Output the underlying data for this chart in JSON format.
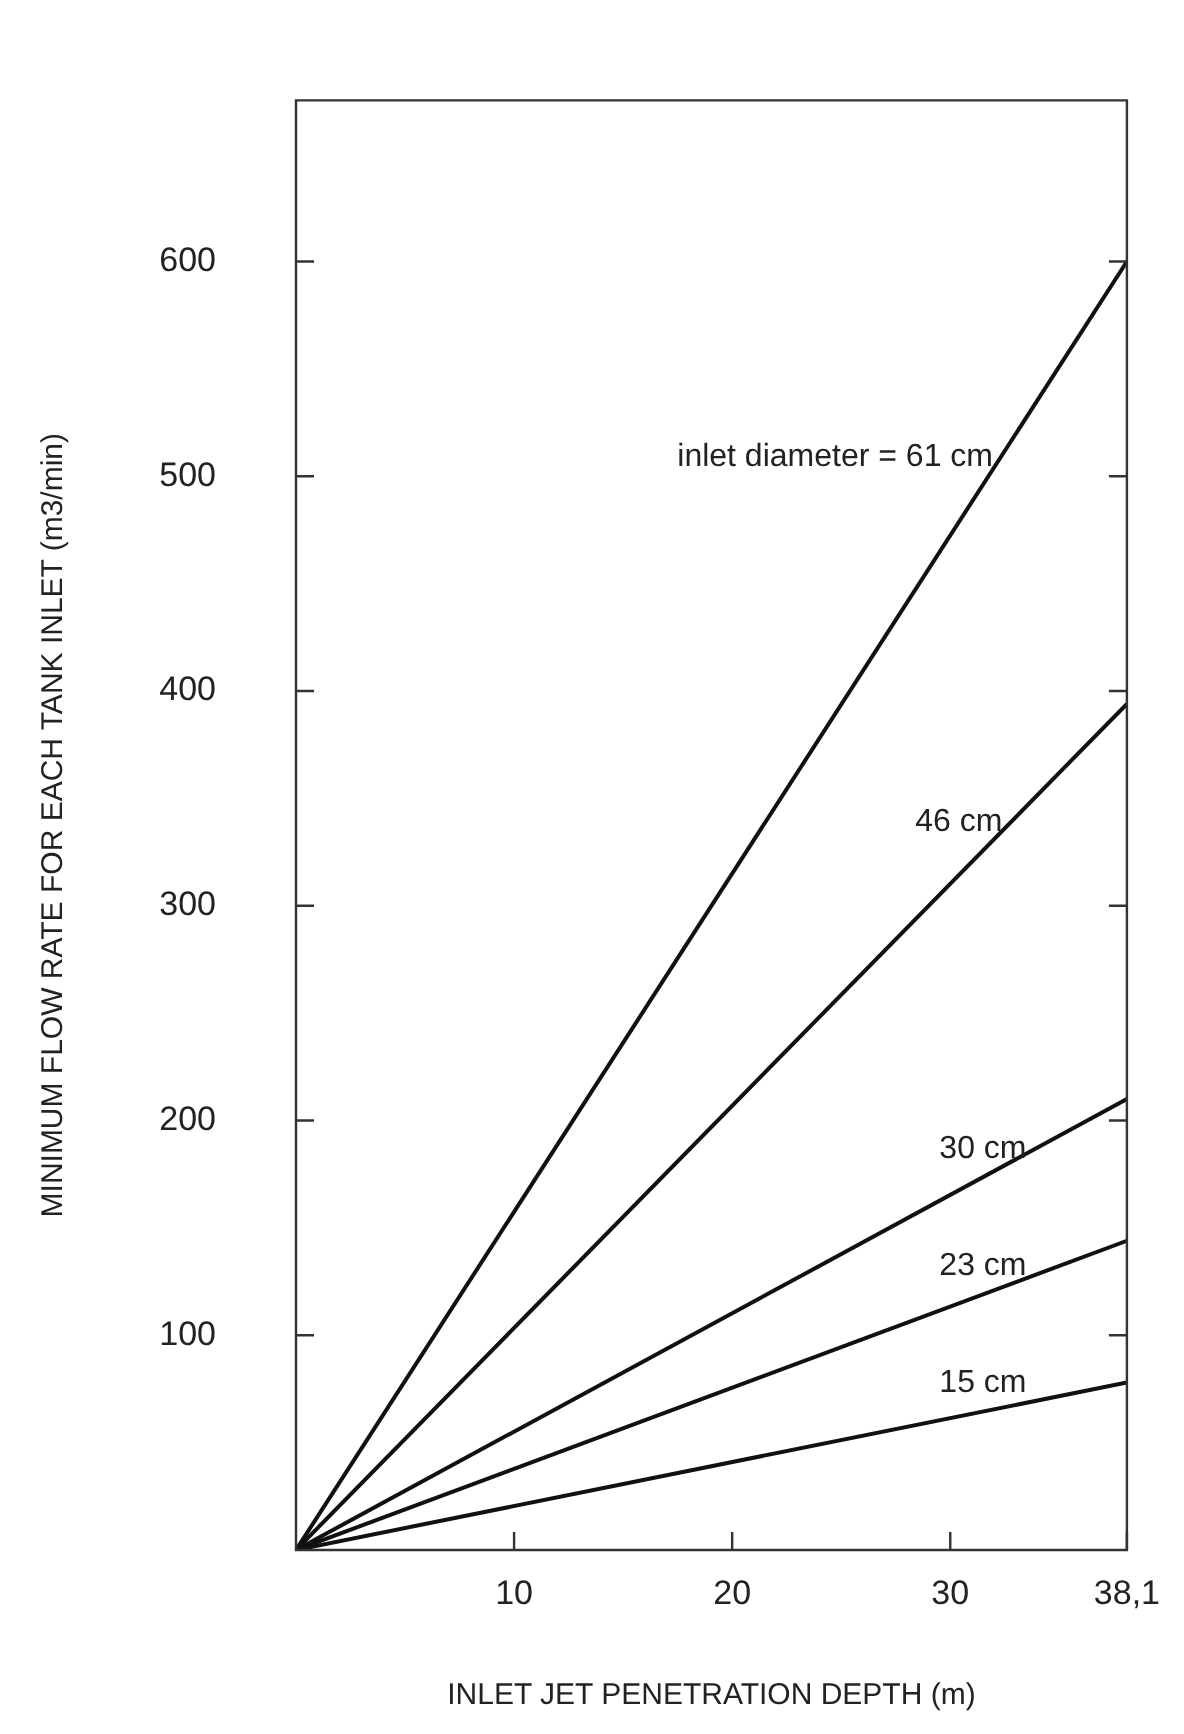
{
  "chart_data": {
    "type": "line",
    "xlabel": "INLET JET PENETRATION DEPTH (m)",
    "ylabel": "MINIMUM FLOW RATE FOR EACH TANK INLET (m3/min)",
    "x": [
      0,
      38.1
    ],
    "series": [
      {
        "name": "inlet diameter = 61 cm",
        "color": "#111111",
        "values": [
          0,
          600
        ]
      },
      {
        "name": "46 cm",
        "color": "#111111",
        "values": [
          0,
          394
        ]
      },
      {
        "name": "30 cm",
        "color": "#111111",
        "values": [
          0,
          210
        ]
      },
      {
        "name": "23 cm",
        "color": "#111111",
        "values": [
          0,
          144
        ]
      },
      {
        "name": "15 cm",
        "color": "#111111",
        "values": [
          0,
          78
        ]
      }
    ],
    "xlim": [
      0,
      38.1
    ],
    "xticks": [
      10,
      20,
      30,
      {
        "value": 38.1,
        "label": "38,1"
      }
    ],
    "ylim": [
      0,
      675
    ],
    "yticks": [
      100,
      200,
      300,
      400,
      500,
      600
    ],
    "line_style": "solid",
    "grid": false,
    "legend": false
  }
}
